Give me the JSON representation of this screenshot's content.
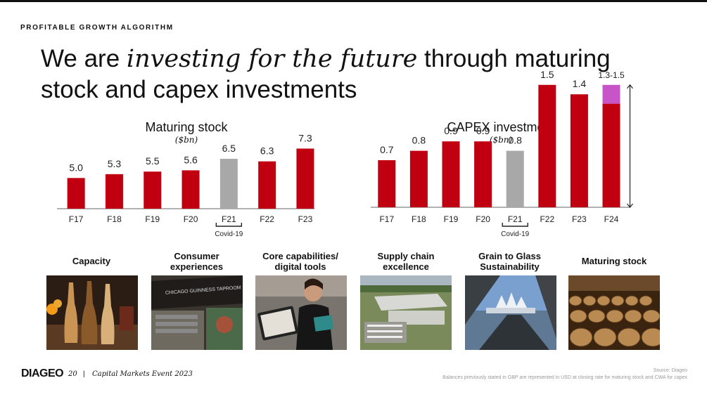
{
  "header": {
    "section_label": "PROFITABLE GROWTH ALGORITHM",
    "title_part1": "We are ",
    "title_emphasis": "investing for the future",
    "title_part2": " through maturing stock and capex investments"
  },
  "chart_data": [
    {
      "type": "bar",
      "title": "Maturing stock",
      "unit": "($bn)",
      "categories": [
        "F17",
        "F18",
        "F19",
        "F20",
        "F21",
        "F22",
        "F23"
      ],
      "values": [
        5.0,
        5.3,
        5.5,
        5.6,
        6.5,
        6.3,
        7.3
      ],
      "value_labels": [
        "5.0",
        "5.3",
        "5.5",
        "5.6",
        "6.5",
        "6.3",
        "7.3"
      ],
      "highlight": "F21",
      "highlight_label": "Covid-19",
      "colors": {
        "bar": "#c00010",
        "highlight": "#a8a8a8"
      }
    },
    {
      "type": "bar",
      "title": "CAPEX investment",
      "unit": "($bn)",
      "categories": [
        "F17",
        "F18",
        "F19",
        "F20",
        "F21",
        "F22",
        "F23",
        "F24"
      ],
      "values": [
        0.7,
        0.8,
        0.9,
        0.9,
        0.8,
        1.5,
        1.4,
        1.5
      ],
      "value_labels": [
        "0.7",
        "0.8",
        "0.9",
        "0.9",
        "0.8",
        "1.5",
        "1.4",
        "1.3-1.5"
      ],
      "range_last": [
        1.3,
        1.5
      ],
      "highlight": "F21",
      "highlight_label": "Covid-19",
      "colors": {
        "bar": "#c00010",
        "highlight": "#a8a8a8",
        "range": "#c855c8"
      }
    }
  ],
  "pillars": [
    {
      "label": "Capacity"
    },
    {
      "label": "Consumer experiences"
    },
    {
      "label": "Core capabilities/ digital tools"
    },
    {
      "label": "Supply chain excellence"
    },
    {
      "label": "Grain to Glass Sustainability"
    },
    {
      "label": "Maturing stock"
    }
  ],
  "photo_text": {
    "consumer_sign": "CHICAGO GUINNESS TAPROOM"
  },
  "footer": {
    "logo": "DIAGEO",
    "page_number": "20",
    "separator": "|",
    "event": "Capital Markets Event 2023",
    "source": "Source: Diageo",
    "note": "Balances previously stated in GBP are represented in USD at closing rate for maturing stock and CWA for capex"
  }
}
